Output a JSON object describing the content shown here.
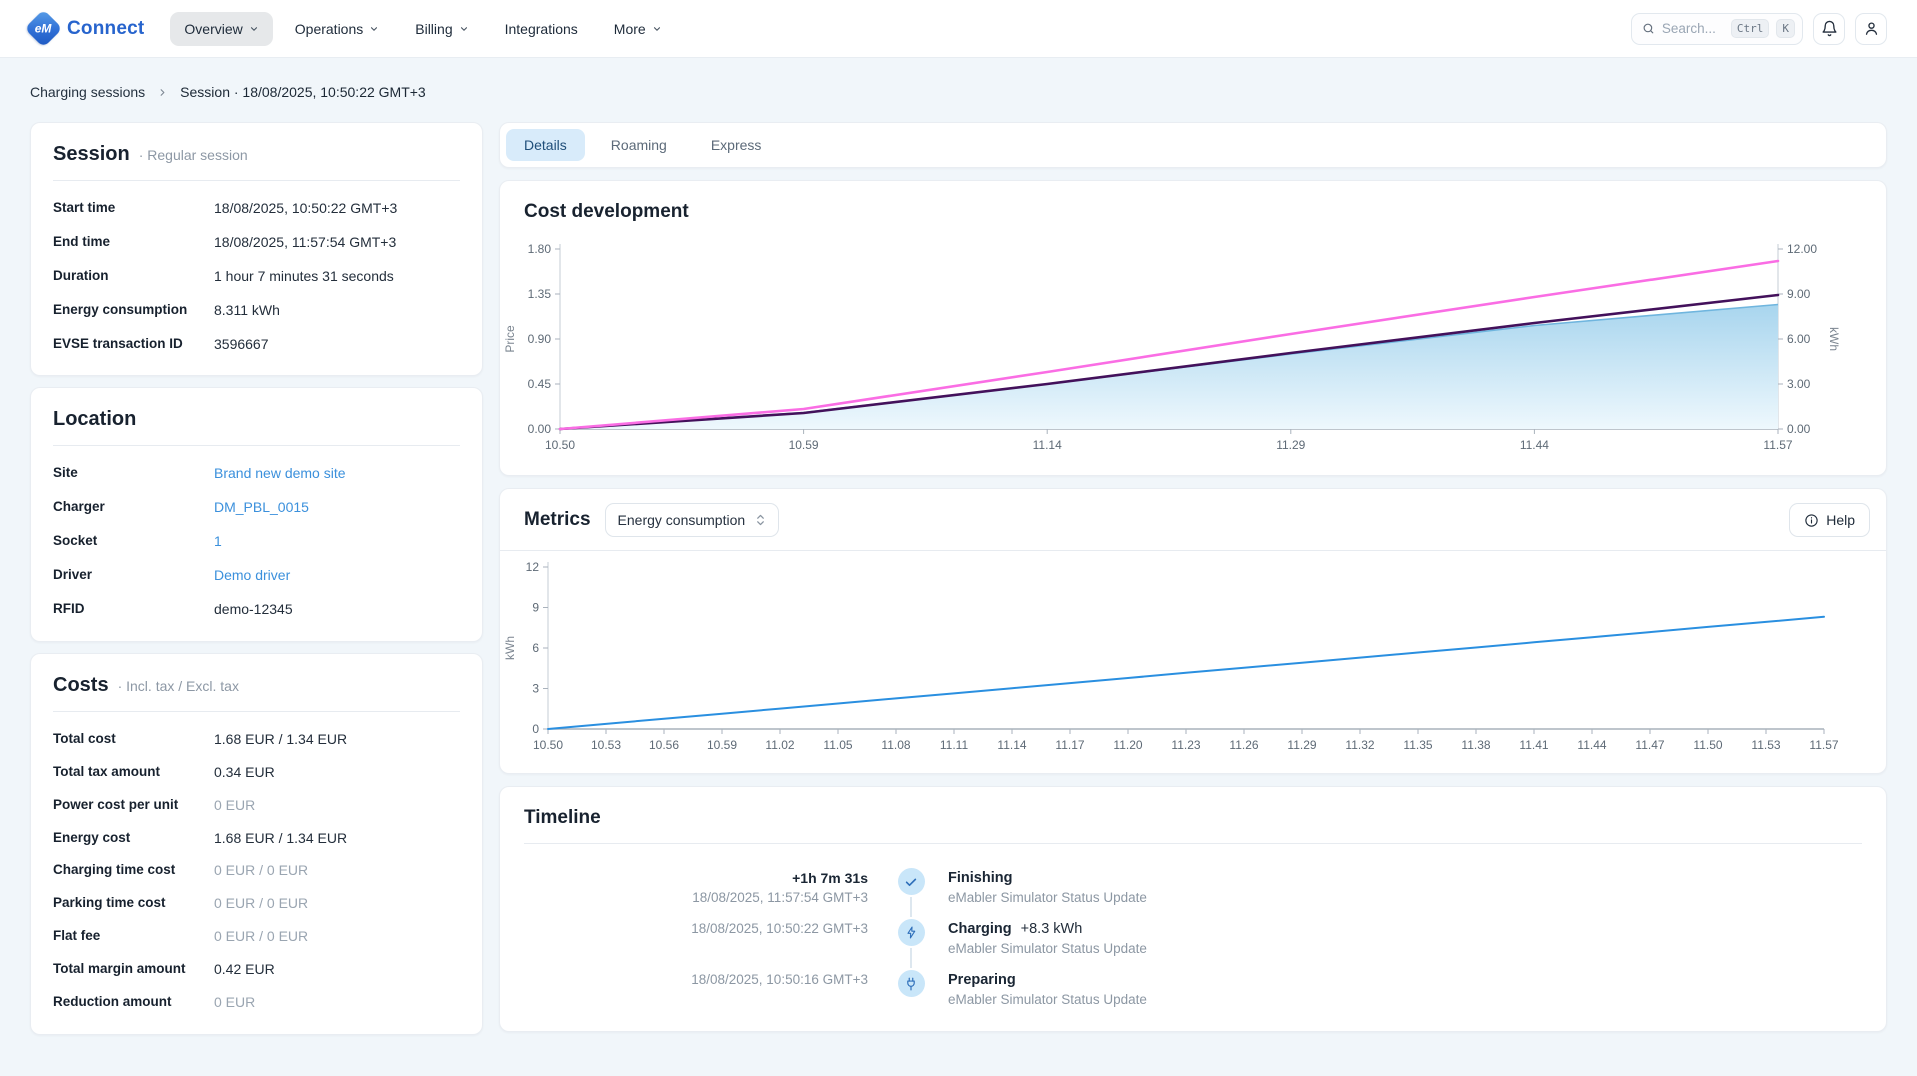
{
  "app": {
    "name": "Connect"
  },
  "navbar": {
    "items": [
      {
        "label": "Overview",
        "chevron": true,
        "active": true
      },
      {
        "label": "Operations",
        "chevron": true,
        "active": false
      },
      {
        "label": "Billing",
        "chevron": true,
        "active": false
      },
      {
        "label": "Integrations",
        "chevron": false,
        "active": false
      },
      {
        "label": "More",
        "chevron": true,
        "active": false
      }
    ],
    "search": {
      "placeholder": "Search...",
      "key1": "Ctrl",
      "key2": "K"
    }
  },
  "breadcrumb": {
    "parent": "Charging sessions",
    "current": "Session · 18/08/2025, 10:50:22 GMT+3"
  },
  "session_card": {
    "title": "Session",
    "subtitle": "· Regular session",
    "rows": [
      {
        "label": "Start time",
        "value": "18/08/2025, 10:50:22 GMT+3"
      },
      {
        "label": "End time",
        "value": "18/08/2025, 11:57:54 GMT+3"
      },
      {
        "label": "Duration",
        "value": "1 hour 7 minutes 31 seconds"
      },
      {
        "label": "Energy consumption",
        "value": "8.311 kWh"
      },
      {
        "label": "EVSE transaction ID",
        "value": "3596667"
      }
    ]
  },
  "location_card": {
    "title": "Location",
    "rows": [
      {
        "label": "Site",
        "value": "Brand new demo site",
        "link": true
      },
      {
        "label": "Charger",
        "value": "DM_PBL_0015",
        "link": true
      },
      {
        "label": "Socket",
        "value": "1",
        "link": true
      },
      {
        "label": "Driver",
        "value": "Demo driver",
        "link": true
      },
      {
        "label": "RFID",
        "value": "demo-12345",
        "link": false
      }
    ]
  },
  "costs_card": {
    "title": "Costs",
    "subtitle": "· Incl. tax / Excl. tax",
    "rows": [
      {
        "label": "Total cost",
        "value": "1.68 EUR / 1.34 EUR",
        "muted": false
      },
      {
        "label": "Total tax amount",
        "value": "0.34 EUR",
        "muted": false
      },
      {
        "label": "Power cost per unit",
        "value": "0 EUR",
        "muted": true
      },
      {
        "label": "Energy cost",
        "value": "1.68 EUR / 1.34 EUR",
        "muted": false
      },
      {
        "label": "Charging time cost",
        "value": "0 EUR / 0 EUR",
        "muted": true
      },
      {
        "label": "Parking time cost",
        "value": "0 EUR / 0 EUR",
        "muted": true
      },
      {
        "label": "Flat fee",
        "value": "0 EUR / 0 EUR",
        "muted": true
      },
      {
        "label": "Total margin amount",
        "value": "0.42 EUR",
        "muted": false
      },
      {
        "label": "Reduction amount",
        "value": "0 EUR",
        "muted": true
      }
    ]
  },
  "tabs": [
    {
      "label": "Details",
      "active": true
    },
    {
      "label": "Roaming",
      "active": false
    },
    {
      "label": "Express",
      "active": false
    }
  ],
  "cost_development": {
    "title": "Cost development"
  },
  "metrics": {
    "title": "Metrics",
    "selected_metric": "Energy consumption",
    "help_label": "Help"
  },
  "timeline": {
    "title": "Timeline",
    "events": [
      {
        "duration": "+1h 7m 31s",
        "timestamp": "18/08/2025, 11:57:54 GMT+3",
        "status": "Finishing",
        "source": "eMabler Simulator Status Update",
        "icon": "check"
      },
      {
        "timestamp": "18/08/2025, 10:50:22 GMT+3",
        "status": "Charging",
        "extra": "+8.3 kWh",
        "source": "eMabler Simulator Status Update",
        "icon": "bolt"
      },
      {
        "timestamp": "18/08/2025, 10:50:16 GMT+3",
        "status": "Preparing",
        "source": "eMabler Simulator Status Update",
        "icon": "plug"
      }
    ]
  },
  "colors": {
    "accent_blue": "#3b90dc",
    "active_tab_bg": "#d8ebfa",
    "page_bg": "#f1f6fa",
    "line_pink": "#fa6de4",
    "line_purple": "#43115b",
    "line_blue": "#2a8fe0"
  },
  "chart_data": [
    {
      "type": "area",
      "title": "Cost development",
      "x": [
        "10.50",
        "10.59",
        "11.14",
        "11.29",
        "11.44",
        "11.57"
      ],
      "left_axis": {
        "label": "Price",
        "range": [
          0,
          1.8
        ],
        "ticks": [
          0,
          0.45,
          0.9,
          1.35,
          1.8
        ],
        "tick_labels": [
          "0.00",
          "0.45",
          "0.90",
          "1.35",
          "1.80"
        ]
      },
      "right_axis": {
        "label": "kWh",
        "range": [
          0,
          12
        ],
        "ticks": [
          0,
          3,
          6,
          9,
          12
        ],
        "tick_labels": [
          "0.00",
          "3.00",
          "6.00",
          "9.00",
          "12.00"
        ]
      },
      "fill_top": "#a8d5ee",
      "fill_bottom": "#eef8fd",
      "grid": false,
      "legend": false,
      "series": [
        {
          "name": "energy_kwh",
          "axis": "right",
          "type": "area",
          "color": "#6fb5de",
          "values": [
            0,
            1.1,
            3.0,
            5.0,
            6.9,
            8.3
          ]
        },
        {
          "name": "price_excl_tax",
          "axis": "left",
          "type": "line",
          "color": "#43115b",
          "values": [
            0,
            0.16,
            0.45,
            0.76,
            1.06,
            1.34
          ]
        },
        {
          "name": "price_incl_tax",
          "axis": "left",
          "type": "line",
          "color": "#fa6de4",
          "values": [
            0,
            0.2,
            0.57,
            0.95,
            1.32,
            1.68
          ]
        }
      ]
    },
    {
      "type": "line",
      "title": "Metrics - Energy consumption",
      "x": [
        "10.50",
        "10.53",
        "10.56",
        "10.59",
        "11.02",
        "11.05",
        "11.08",
        "11.11",
        "11.14",
        "11.17",
        "11.20",
        "11.23",
        "11.26",
        "11.29",
        "11.32",
        "11.35",
        "11.38",
        "11.41",
        "11.44",
        "11.47",
        "11.50",
        "11.53",
        "11.57"
      ],
      "y_axis": {
        "label": "kWh",
        "range": [
          0,
          12
        ],
        "ticks": [
          0,
          3,
          6,
          9,
          12
        ],
        "tick_labels": [
          "0",
          "3",
          "6",
          "9",
          "12"
        ]
      },
      "grid": false,
      "legend": false,
      "series": [
        {
          "name": "energy_kwh",
          "type": "line",
          "color": "#2a8fe0",
          "width": 2,
          "values": [
            0,
            0.38,
            0.76,
            1.13,
            1.51,
            1.89,
            2.27,
            2.64,
            3.02,
            3.4,
            3.78,
            4.16,
            4.53,
            4.91,
            5.29,
            5.67,
            6.04,
            6.42,
            6.8,
            7.18,
            7.56,
            7.93,
            8.31
          ]
        }
      ]
    }
  ]
}
